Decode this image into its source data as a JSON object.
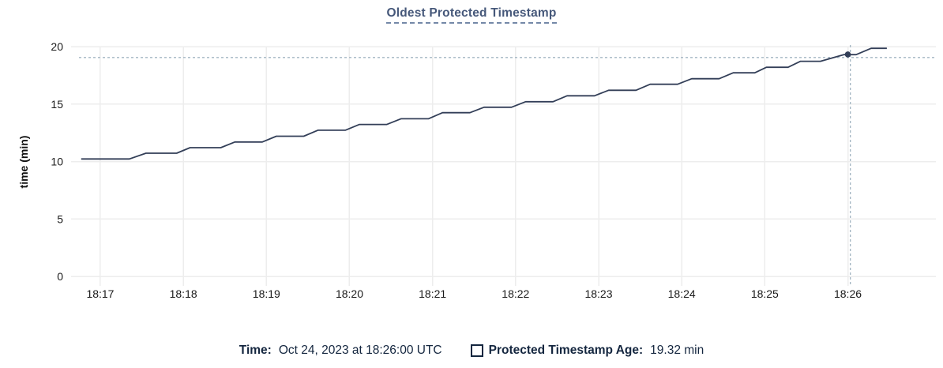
{
  "title": "Oldest Protected Timestamp",
  "legend": {
    "time_label": "Time:",
    "time_value": "Oct 24, 2023 at 18:26:00 UTC",
    "series_label": "Protected Timestamp Age:",
    "series_value": "19.32 min"
  },
  "chart_data": {
    "type": "line",
    "title": "Oldest Protected Timestamp",
    "xlabel": "",
    "ylabel": "time (min)",
    "x_tick_labels": [
      "18:17",
      "18:18",
      "18:19",
      "18:20",
      "18:21",
      "18:22",
      "18:23",
      "18:24",
      "18:25",
      "18:26"
    ],
    "x_tick_minutes": [
      0,
      1,
      2,
      3,
      4,
      5,
      6,
      7,
      8,
      9
    ],
    "y_ticks": [
      0,
      5,
      10,
      15,
      20
    ],
    "xlim": [
      -0.304,
      10.06
    ],
    "ylim": [
      0,
      20
    ],
    "grid": true,
    "legend_position": "bottom-center",
    "series": [
      {
        "name": "Protected Timestamp Age",
        "unit": "min",
        "color": "#333f58",
        "points": [
          [
            -0.23,
            10.22
          ],
          [
            0.35,
            10.22
          ],
          [
            0.55,
            10.72
          ],
          [
            0.92,
            10.72
          ],
          [
            1.08,
            11.2
          ],
          [
            1.45,
            11.2
          ],
          [
            1.62,
            11.7
          ],
          [
            1.95,
            11.7
          ],
          [
            2.12,
            12.2
          ],
          [
            2.45,
            12.2
          ],
          [
            2.62,
            12.72
          ],
          [
            2.95,
            12.72
          ],
          [
            3.12,
            13.22
          ],
          [
            3.45,
            13.22
          ],
          [
            3.62,
            13.72
          ],
          [
            3.95,
            13.72
          ],
          [
            4.12,
            14.25
          ],
          [
            4.45,
            14.25
          ],
          [
            4.62,
            14.72
          ],
          [
            4.95,
            14.72
          ],
          [
            5.12,
            15.2
          ],
          [
            5.45,
            15.2
          ],
          [
            5.62,
            15.72
          ],
          [
            5.95,
            15.72
          ],
          [
            6.12,
            16.2
          ],
          [
            6.45,
            16.2
          ],
          [
            6.62,
            16.72
          ],
          [
            6.95,
            16.72
          ],
          [
            7.12,
            17.2
          ],
          [
            7.45,
            17.2
          ],
          [
            7.62,
            17.72
          ],
          [
            7.88,
            17.72
          ],
          [
            8.02,
            18.2
          ],
          [
            8.28,
            18.2
          ],
          [
            8.43,
            18.72
          ],
          [
            8.67,
            18.72
          ],
          [
            8.95,
            19.3
          ],
          [
            9.1,
            19.3
          ],
          [
            9.28,
            19.85
          ],
          [
            9.47,
            19.85
          ]
        ]
      }
    ],
    "hover_point": {
      "t": 9.0,
      "v": 19.32
    },
    "crosshair": {
      "t": 9.03,
      "v": 19.05
    },
    "colors": {
      "grid": "#ededed",
      "crosshair": "#a2b5c2",
      "axis_text": "#1a1a1a",
      "title": "#46587a",
      "legend_text": "#14263f"
    }
  }
}
